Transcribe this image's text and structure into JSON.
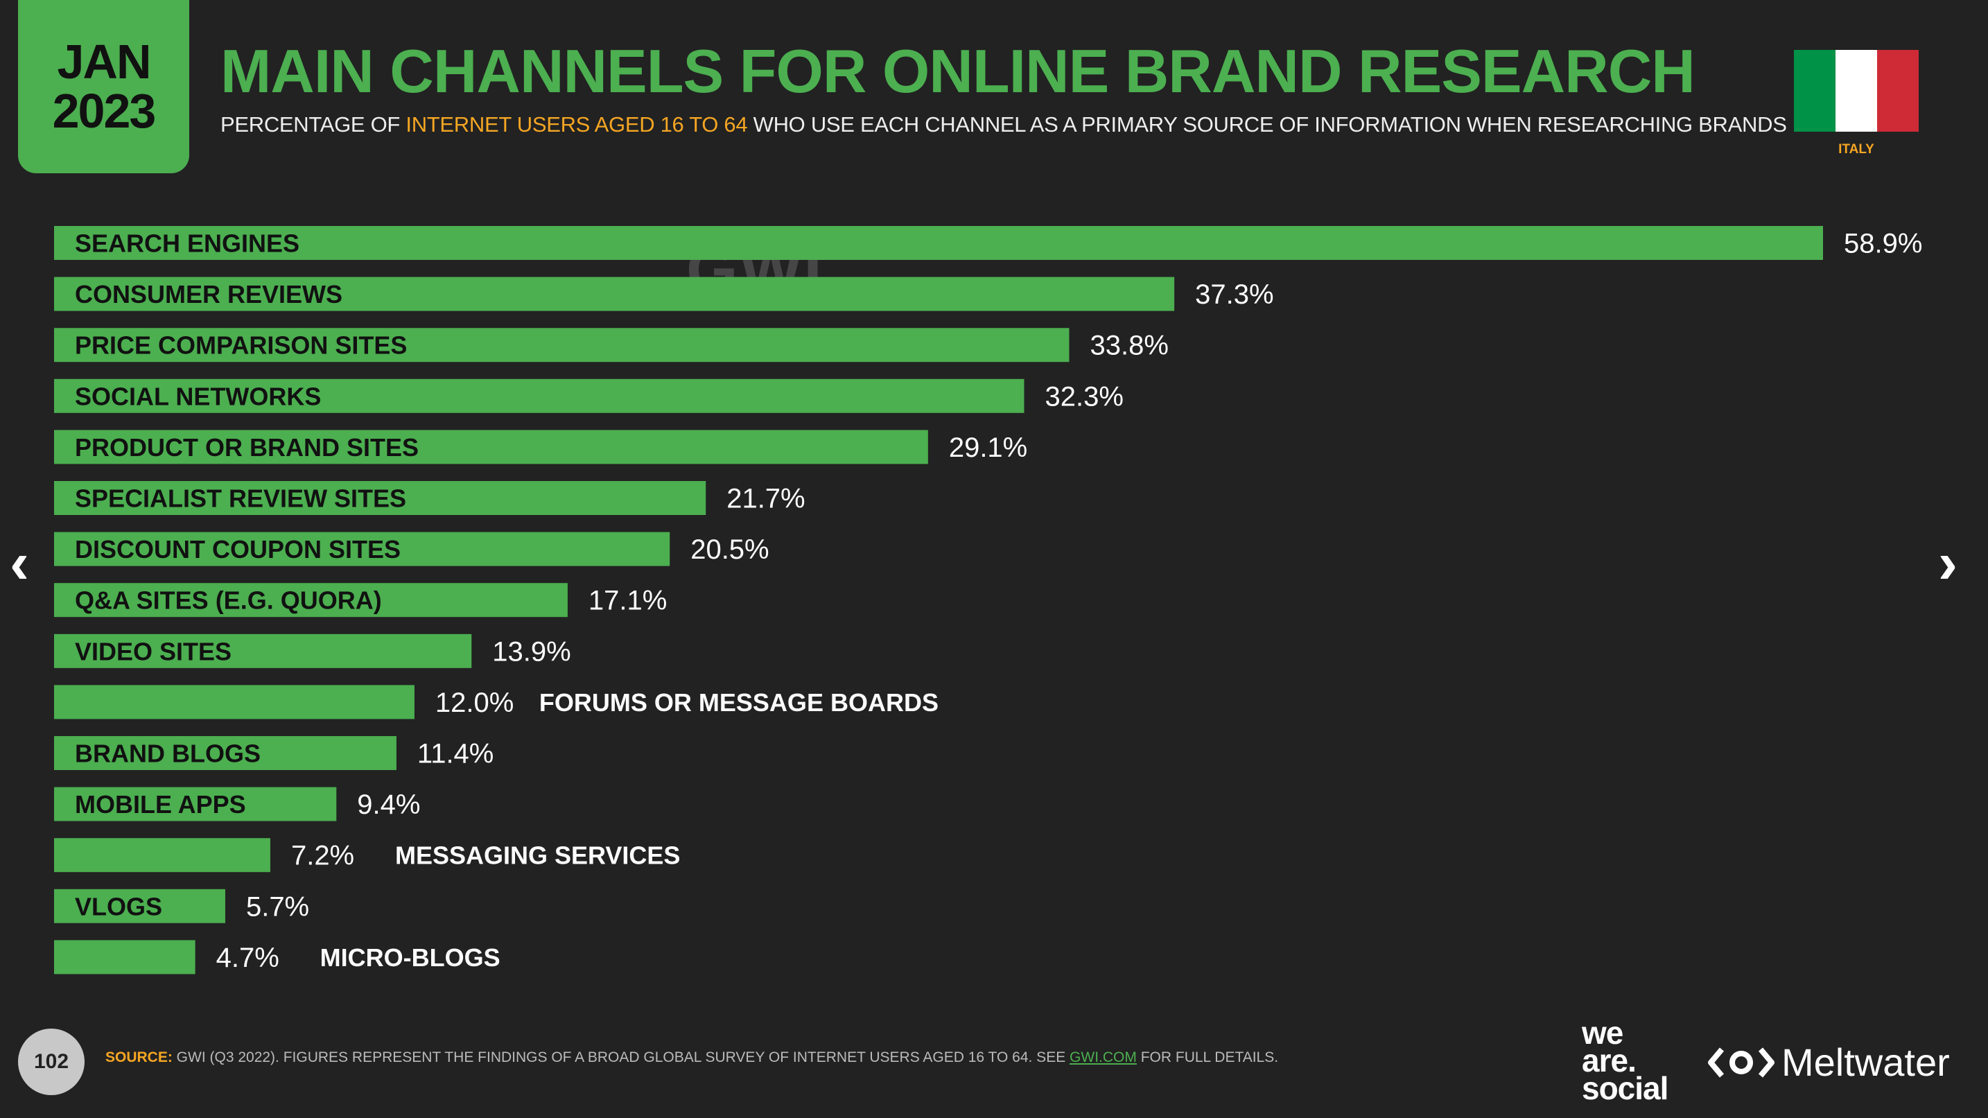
{
  "header": {
    "month": "JAN",
    "year": "2023",
    "title": "MAIN CHANNELS FOR ONLINE BRAND RESEARCH",
    "subtitle_pre": "PERCENTAGE OF ",
    "subtitle_highlight": "INTERNET USERS AGED 16 TO 64",
    "subtitle_post": " WHO USE EACH CHANNEL AS A PRIMARY SOURCE OF INFORMATION WHEN RESEARCHING BRANDS"
  },
  "country": {
    "label": "ITALY",
    "flag_colors": [
      "#009246",
      "#ffffff",
      "#ce2b37"
    ]
  },
  "watermark": "GWI.",
  "nav": {
    "prev_icon": "chevron-left-icon",
    "next_icon": "chevron-right-icon",
    "prev": "‹",
    "next": "›"
  },
  "footer": {
    "page_number": "102",
    "source_label": "SOURCE:",
    "source_text": " GWI (Q3 2022). FIGURES REPRESENT THE FINDINGS OF A BROAD GLOBAL SURVEY OF INTERNET USERS AGED 16 TO 64. SEE ",
    "source_link": "GWI.COM",
    "source_tail": " FOR FULL DETAILS.",
    "logo_was_1": "we",
    "logo_was_2": "are.",
    "logo_was_3": "social",
    "logo_mw": "Meltwater"
  },
  "colors": {
    "accent": "#4caf50",
    "highlight": "#f5a623",
    "background": "#222222"
  },
  "chart_data": {
    "type": "bar",
    "orientation": "horizontal",
    "categories": [
      "SEARCH ENGINES",
      "CONSUMER REVIEWS",
      "PRICE COMPARISON SITES",
      "SOCIAL NETWORKS",
      "PRODUCT OR BRAND SITES",
      "SPECIALIST REVIEW SITES",
      "DISCOUNT COUPON SITES",
      "Q&A SITES (E.G. QUORA)",
      "VIDEO SITES",
      "FORUMS OR MESSAGE BOARDS",
      "BRAND BLOGS",
      "MOBILE APPS",
      "MESSAGING SERVICES",
      "VLOGS",
      "MICRO-BLOGS"
    ],
    "values": [
      58.9,
      37.3,
      33.8,
      32.3,
      29.1,
      21.7,
      20.5,
      17.1,
      13.9,
      12.0,
      11.4,
      9.4,
      7.2,
      5.7,
      4.7
    ],
    "value_labels": [
      "58.9%",
      "37.3%",
      "33.8%",
      "32.3%",
      "29.1%",
      "21.7%",
      "20.5%",
      "17.1%",
      "13.9%",
      "12.0%",
      "11.4%",
      "9.4%",
      "7.2%",
      "5.7%",
      "4.7%"
    ],
    "ylim": [
      0,
      58.9
    ],
    "bar_color": "#4caf50",
    "grid": false
  }
}
